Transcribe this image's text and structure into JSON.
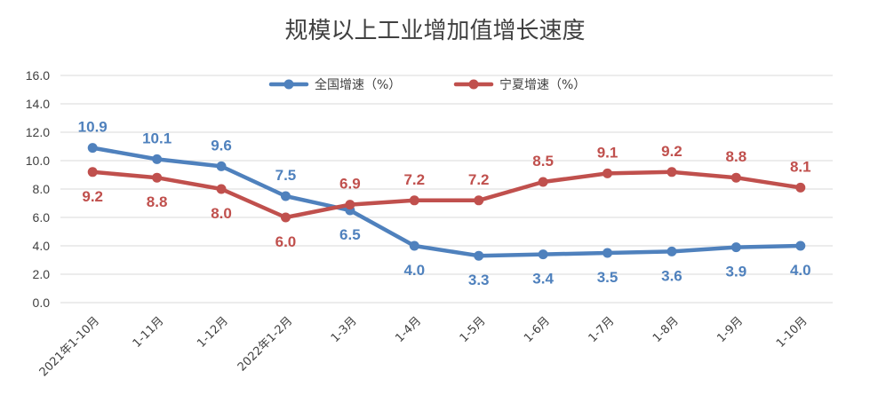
{
  "chart_data": {
    "type": "line",
    "title": "规模以上工业增加值增长速度",
    "categories": [
      "2021年1-10月",
      "1-11月",
      "1-12月",
      "2022年1-2月",
      "1-3月",
      "1-4月",
      "1-5月",
      "1-6月",
      "1-7月",
      "1-8月",
      "1-9月",
      "1-10月"
    ],
    "ylim": [
      0,
      16
    ],
    "yticks": [
      "0.0",
      "2.0",
      "4.0",
      "6.0",
      "8.0",
      "10.0",
      "12.0",
      "14.0",
      "16.0"
    ],
    "grid": true,
    "legend_position": "top",
    "series": [
      {
        "name": "全国增速（%）",
        "color": "#4f81bd",
        "values": [
          10.9,
          10.1,
          9.6,
          7.5,
          6.5,
          4.0,
          3.3,
          3.4,
          3.5,
          3.6,
          3.9,
          4.0
        ],
        "labels": [
          "10.9",
          "10.1",
          "9.6",
          "7.5",
          "6.5",
          "4.0",
          "3.3",
          "3.4",
          "3.5",
          "3.6",
          "3.9",
          "4.0"
        ]
      },
      {
        "name": "宁夏增速（%）",
        "color": "#c0504d",
        "values": [
          9.2,
          8.8,
          8.0,
          6.0,
          6.9,
          7.2,
          7.2,
          8.5,
          9.1,
          9.2,
          8.8,
          8.1
        ],
        "labels": [
          "9.2",
          "8.8",
          "8.0",
          "6.0",
          "6.9",
          "7.2",
          "7.2",
          "8.5",
          "9.1",
          "9.2",
          "8.8",
          "8.1"
        ]
      }
    ]
  }
}
